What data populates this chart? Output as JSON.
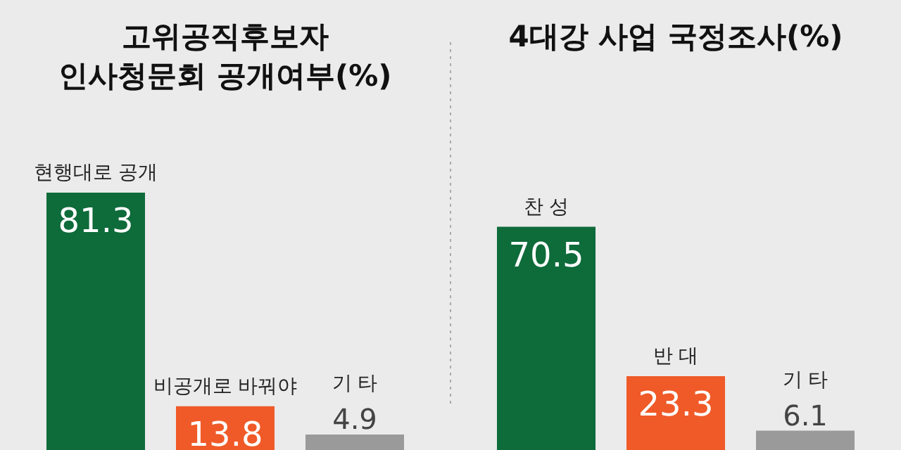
{
  "chart_data": [
    {
      "type": "bar",
      "title": "고위공직후보자\n인사청문회 공개여부(%)",
      "categories": [
        "현행대로 공개",
        "비공개로 바꿔야",
        "기 타"
      ],
      "values": [
        81.3,
        13.8,
        4.9
      ],
      "colors": [
        "#0e6b3a",
        "#f05a28",
        "#9a9a9a"
      ],
      "data_labels": true
    },
    {
      "type": "bar",
      "title": "4대강 사업 국정조사(%)",
      "categories": [
        "찬 성",
        "반 대",
        "기 타"
      ],
      "values": [
        70.5,
        23.3,
        6.1
      ],
      "colors": [
        "#0e6b3a",
        "#f05a28",
        "#9a9a9a"
      ],
      "data_labels": true
    }
  ]
}
